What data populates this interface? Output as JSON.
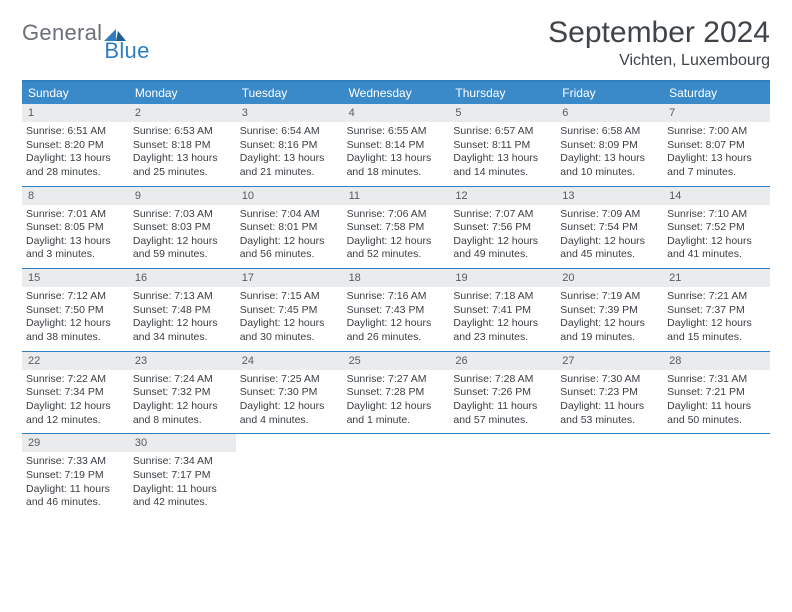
{
  "brand": {
    "name_gray": "General",
    "name_blue": "Blue"
  },
  "title": "September 2024",
  "location": "Vichten, Luxembourg",
  "colors": {
    "header_bar": "#3a8ac9",
    "rule": "#2f7ec2",
    "daynum_bg": "#e9ebec",
    "text": "#3a3e42",
    "logo_gray": "#6b7076",
    "logo_blue": "#2f7ec2",
    "background": "#ffffff"
  },
  "days_of_week": [
    "Sunday",
    "Monday",
    "Tuesday",
    "Wednesday",
    "Thursday",
    "Friday",
    "Saturday"
  ],
  "weeks": [
    [
      {
        "n": "1",
        "sr": "Sunrise: 6:51 AM",
        "ss": "Sunset: 8:20 PM",
        "d1": "Daylight: 13 hours",
        "d2": "and 28 minutes."
      },
      {
        "n": "2",
        "sr": "Sunrise: 6:53 AM",
        "ss": "Sunset: 8:18 PM",
        "d1": "Daylight: 13 hours",
        "d2": "and 25 minutes."
      },
      {
        "n": "3",
        "sr": "Sunrise: 6:54 AM",
        "ss": "Sunset: 8:16 PM",
        "d1": "Daylight: 13 hours",
        "d2": "and 21 minutes."
      },
      {
        "n": "4",
        "sr": "Sunrise: 6:55 AM",
        "ss": "Sunset: 8:14 PM",
        "d1": "Daylight: 13 hours",
        "d2": "and 18 minutes."
      },
      {
        "n": "5",
        "sr": "Sunrise: 6:57 AM",
        "ss": "Sunset: 8:11 PM",
        "d1": "Daylight: 13 hours",
        "d2": "and 14 minutes."
      },
      {
        "n": "6",
        "sr": "Sunrise: 6:58 AM",
        "ss": "Sunset: 8:09 PM",
        "d1": "Daylight: 13 hours",
        "d2": "and 10 minutes."
      },
      {
        "n": "7",
        "sr": "Sunrise: 7:00 AM",
        "ss": "Sunset: 8:07 PM",
        "d1": "Daylight: 13 hours",
        "d2": "and 7 minutes."
      }
    ],
    [
      {
        "n": "8",
        "sr": "Sunrise: 7:01 AM",
        "ss": "Sunset: 8:05 PM",
        "d1": "Daylight: 13 hours",
        "d2": "and 3 minutes."
      },
      {
        "n": "9",
        "sr": "Sunrise: 7:03 AM",
        "ss": "Sunset: 8:03 PM",
        "d1": "Daylight: 12 hours",
        "d2": "and 59 minutes."
      },
      {
        "n": "10",
        "sr": "Sunrise: 7:04 AM",
        "ss": "Sunset: 8:01 PM",
        "d1": "Daylight: 12 hours",
        "d2": "and 56 minutes."
      },
      {
        "n": "11",
        "sr": "Sunrise: 7:06 AM",
        "ss": "Sunset: 7:58 PM",
        "d1": "Daylight: 12 hours",
        "d2": "and 52 minutes."
      },
      {
        "n": "12",
        "sr": "Sunrise: 7:07 AM",
        "ss": "Sunset: 7:56 PM",
        "d1": "Daylight: 12 hours",
        "d2": "and 49 minutes."
      },
      {
        "n": "13",
        "sr": "Sunrise: 7:09 AM",
        "ss": "Sunset: 7:54 PM",
        "d1": "Daylight: 12 hours",
        "d2": "and 45 minutes."
      },
      {
        "n": "14",
        "sr": "Sunrise: 7:10 AM",
        "ss": "Sunset: 7:52 PM",
        "d1": "Daylight: 12 hours",
        "d2": "and 41 minutes."
      }
    ],
    [
      {
        "n": "15",
        "sr": "Sunrise: 7:12 AM",
        "ss": "Sunset: 7:50 PM",
        "d1": "Daylight: 12 hours",
        "d2": "and 38 minutes."
      },
      {
        "n": "16",
        "sr": "Sunrise: 7:13 AM",
        "ss": "Sunset: 7:48 PM",
        "d1": "Daylight: 12 hours",
        "d2": "and 34 minutes."
      },
      {
        "n": "17",
        "sr": "Sunrise: 7:15 AM",
        "ss": "Sunset: 7:45 PM",
        "d1": "Daylight: 12 hours",
        "d2": "and 30 minutes."
      },
      {
        "n": "18",
        "sr": "Sunrise: 7:16 AM",
        "ss": "Sunset: 7:43 PM",
        "d1": "Daylight: 12 hours",
        "d2": "and 26 minutes."
      },
      {
        "n": "19",
        "sr": "Sunrise: 7:18 AM",
        "ss": "Sunset: 7:41 PM",
        "d1": "Daylight: 12 hours",
        "d2": "and 23 minutes."
      },
      {
        "n": "20",
        "sr": "Sunrise: 7:19 AM",
        "ss": "Sunset: 7:39 PM",
        "d1": "Daylight: 12 hours",
        "d2": "and 19 minutes."
      },
      {
        "n": "21",
        "sr": "Sunrise: 7:21 AM",
        "ss": "Sunset: 7:37 PM",
        "d1": "Daylight: 12 hours",
        "d2": "and 15 minutes."
      }
    ],
    [
      {
        "n": "22",
        "sr": "Sunrise: 7:22 AM",
        "ss": "Sunset: 7:34 PM",
        "d1": "Daylight: 12 hours",
        "d2": "and 12 minutes."
      },
      {
        "n": "23",
        "sr": "Sunrise: 7:24 AM",
        "ss": "Sunset: 7:32 PM",
        "d1": "Daylight: 12 hours",
        "d2": "and 8 minutes."
      },
      {
        "n": "24",
        "sr": "Sunrise: 7:25 AM",
        "ss": "Sunset: 7:30 PM",
        "d1": "Daylight: 12 hours",
        "d2": "and 4 minutes."
      },
      {
        "n": "25",
        "sr": "Sunrise: 7:27 AM",
        "ss": "Sunset: 7:28 PM",
        "d1": "Daylight: 12 hours",
        "d2": "and 1 minute."
      },
      {
        "n": "26",
        "sr": "Sunrise: 7:28 AM",
        "ss": "Sunset: 7:26 PM",
        "d1": "Daylight: 11 hours",
        "d2": "and 57 minutes."
      },
      {
        "n": "27",
        "sr": "Sunrise: 7:30 AM",
        "ss": "Sunset: 7:23 PM",
        "d1": "Daylight: 11 hours",
        "d2": "and 53 minutes."
      },
      {
        "n": "28",
        "sr": "Sunrise: 7:31 AM",
        "ss": "Sunset: 7:21 PM",
        "d1": "Daylight: 11 hours",
        "d2": "and 50 minutes."
      }
    ],
    [
      {
        "n": "29",
        "sr": "Sunrise: 7:33 AM",
        "ss": "Sunset: 7:19 PM",
        "d1": "Daylight: 11 hours",
        "d2": "and 46 minutes."
      },
      {
        "n": "30",
        "sr": "Sunrise: 7:34 AM",
        "ss": "Sunset: 7:17 PM",
        "d1": "Daylight: 11 hours",
        "d2": "and 42 minutes."
      },
      null,
      null,
      null,
      null,
      null
    ]
  ]
}
